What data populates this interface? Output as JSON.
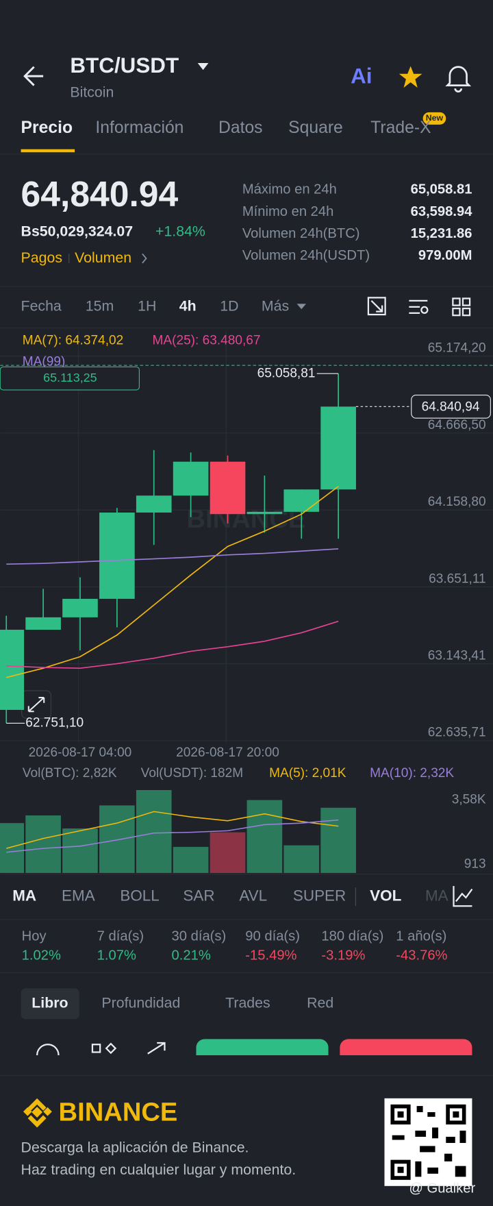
{
  "header": {
    "pair": "BTC/USDT",
    "subtitle": "Bitcoin",
    "ai": "Ai"
  },
  "tabs": {
    "items": [
      "Precio",
      "Información",
      "Datos",
      "Square",
      "Trade-X"
    ],
    "badge": "New"
  },
  "price": {
    "last": "64,840.94",
    "fiat": "Bs50,029,324.07",
    "change": "+1.84%",
    "links": [
      "Pagos",
      "Volumen"
    ]
  },
  "stats": [
    [
      "Máximo en 24h",
      "65,058.81"
    ],
    [
      "Mínimo en 24h",
      "63,598.94"
    ],
    [
      "Volumen 24h(BTC)",
      "15,231.86"
    ],
    [
      "Volumen 24h(USDT)",
      "979.00M"
    ]
  ],
  "intervals": [
    "Fecha",
    "15m",
    "1H",
    "4h",
    "1D",
    "Más"
  ],
  "chart_watermark": "BINANCE",
  "chart_data": [
    {
      "type": "candlestick",
      "categories": [
        null,
        null,
        "2026-08-17 04:00",
        null,
        null,
        null,
        "2026-08-17 20:00",
        null,
        null,
        null
      ],
      "open": [
        62839,
        63368,
        63450,
        63572,
        64141.5,
        64253.5,
        64477.3,
        64131.4,
        64146.6,
        64294
      ],
      "high": [
        63460,
        63638,
        63714,
        64172,
        64553.6,
        64538,
        64518,
        64385.7,
        64294,
        65058.81
      ],
      "low": [
        62751.1,
        63368,
        63231,
        63384,
        63927.9,
        64111,
        64070,
        64009,
        63968.6,
        63968.6
      ],
      "close": [
        63368,
        63450,
        63572,
        64141.5,
        64253.5,
        64477.3,
        64131.4,
        64146.6,
        64294,
        64840.94
      ],
      "colors": {
        "up": "#2ebd85",
        "down": "#f6465d"
      },
      "ylim": [
        62635.71,
        65174.2
      ],
      "yticks": [
        {
          "value": 65174.2,
          "label": "65.174,20"
        },
        {
          "value": 64666.5,
          "label": "64.666,50"
        },
        {
          "value": 64158.8,
          "label": "64.158,80"
        },
        {
          "value": 63651.11,
          "label": "63.651,11"
        },
        {
          "value": 63143.41,
          "label": "63.143,41"
        },
        {
          "value": 62635.71,
          "label": "62.635,71"
        }
      ],
      "series": [
        {
          "label": "MA(7): 64.374,02",
          "color": "#f0b90b",
          "values": [
            63053,
            63114,
            63190,
            63333,
            63531,
            63729,
            63918,
            64019,
            64131,
            64314
          ]
        },
        {
          "label": "MA(25): 63.480,67",
          "color": "#e84393",
          "values": [
            63129,
            63119,
            63114,
            63144,
            63180,
            63226,
            63256,
            63292,
            63348,
            63424
          ]
        },
        {
          "label": "MA(99)",
          "color": "#9b7ddb",
          "values": [
            63801,
            63806,
            63816,
            63826,
            63836,
            63847,
            63862,
            63872,
            63887,
            63902
          ]
        }
      ],
      "high_label": {
        "value": 65058.81,
        "label": "65.058,81"
      },
      "low_label": {
        "value": 62751.1,
        "label": "62.751,10"
      },
      "last_price": {
        "value": 64840.94,
        "label": "64.840,94"
      },
      "price_line": {
        "value": 65113.25,
        "label": "65.113,25"
      }
    },
    {
      "type": "bar",
      "legend": [
        "Vol(BTC): 2,82K",
        "Vol(USDT): 182M"
      ],
      "values": [
        2627,
        2945,
        2405,
        3358,
        3993,
        1643,
        2247,
        3580,
        1707,
        3262
      ],
      "colors": [
        "#2b7a5c",
        "#2b7a5c",
        "#2b7a5c",
        "#2b7a5c",
        "#2b7a5c",
        "#2b7a5c",
        "#8c3446",
        "#2b7a5c",
        "#2b7a5c",
        "#2b7a5c"
      ],
      "ylim": [
        564,
        4000
      ],
      "yticks": [
        {
          "value": 3580,
          "label": "3,58K"
        },
        913
      ],
      "series": [
        {
          "label": "MA(5): 2,01K",
          "color": "#f0b90b",
          "values": [
            1580,
            1992,
            2310,
            2627,
            3104,
            2882,
            2723,
            3009,
            2691,
            2501
          ]
        },
        {
          "label": "MA(10): 2,32K",
          "color": "#9b7ddb",
          "values": [
            1421,
            1580,
            1675,
            1929,
            2215,
            2247,
            2310,
            2564,
            2627,
            2755
          ]
        }
      ]
    }
  ],
  "indicators": [
    "MA",
    "EMA",
    "BOLL",
    "SAR",
    "AVL",
    "SUPER",
    "VOL",
    "MA"
  ],
  "performance": [
    [
      "Hoy",
      "1.02%"
    ],
    [
      "7 día(s)",
      "1.07%"
    ],
    [
      "30 día(s)",
      "0.21%"
    ],
    [
      "90 día(s)",
      "-15.49%"
    ],
    [
      "180 día(s)",
      "-3.19%"
    ],
    [
      "1 año(s)",
      "-43.76%"
    ]
  ],
  "book_tabs": [
    "Libro",
    "Profundidad",
    "Trades",
    "Red"
  ],
  "footer": {
    "brand": "BINANCE",
    "line1": "Descarga la aplicación de Binance.",
    "line2": "Haz trading en cualquier lugar y momento.",
    "watermark": "@ Gualker"
  }
}
